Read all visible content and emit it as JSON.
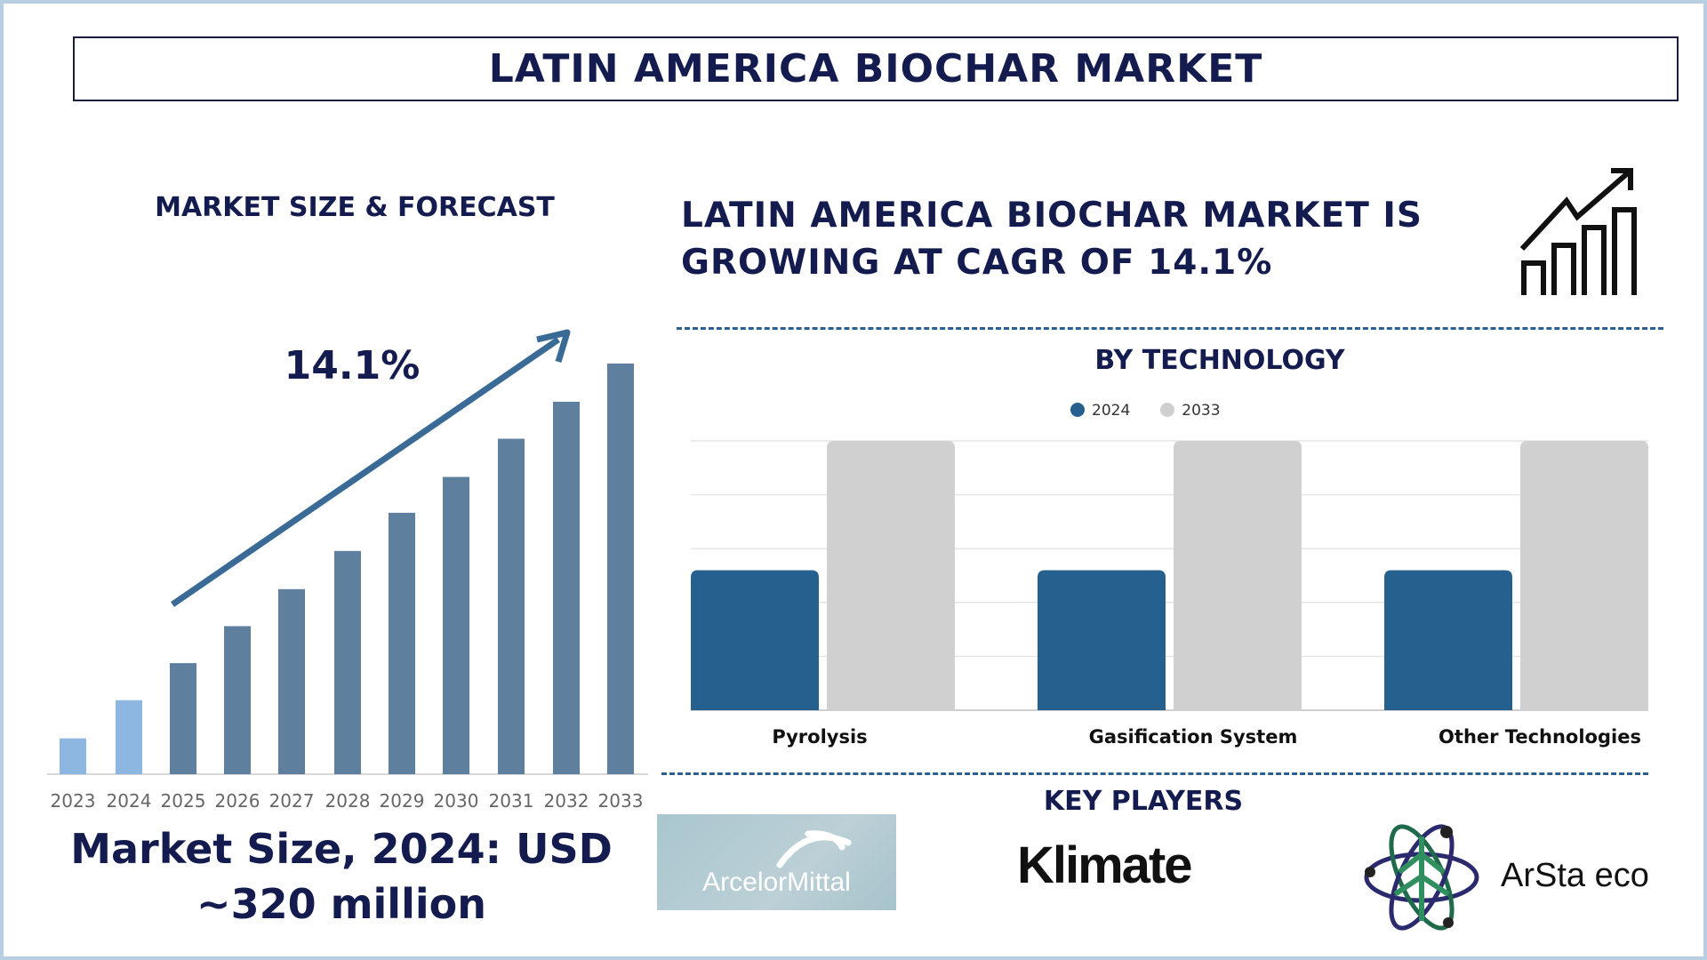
{
  "title": "LATIN AMERICA BIOCHAR MARKET",
  "left": {
    "heading": "MARKET SIZE & FORECAST",
    "cagr_label": "14.1%",
    "market_size_line1": "Market Size, 2024: USD",
    "market_size_line2": "~320 million"
  },
  "right": {
    "headline_line1": "LATIN AMERICA BIOCHAR MARKET IS",
    "headline_line2": "GROWING AT CAGR OF 14.1%",
    "tech_heading": "BY TECHNOLOGY",
    "key_players_heading": "KEY PLAYERS",
    "key_players": [
      "ArcelorMittal",
      "Klimate",
      "ArSta eco"
    ]
  },
  "colors": {
    "navy": "#141c4f",
    "bar_history": "#8db6e0",
    "bar_forecast": "#5f7f9f",
    "arrow": "#3a6b96",
    "tech_2024": "#25608f",
    "tech_2033": "#d0d0d0"
  },
  "chart_data": [
    {
      "type": "bar",
      "title": "MARKET SIZE & FORECAST",
      "categories": [
        "2023",
        "2024",
        "2025",
        "2026",
        "2027",
        "2028",
        "2029",
        "2030",
        "2031",
        "2032",
        "2033"
      ],
      "values": [
        155,
        320,
        480,
        640,
        800,
        965,
        1130,
        1285,
        1450,
        1610,
        1775
      ],
      "ylim": [
        0,
        1775
      ],
      "annotation": "14.1%"
    },
    {
      "type": "bar",
      "title": "BY TECHNOLOGY",
      "categories": [
        "Pyrolysis",
        "Gasification System",
        "Other Technologies"
      ],
      "series": [
        {
          "name": "2024",
          "values": [
            2.6,
            2.6,
            2.6
          ]
        },
        {
          "name": "2033",
          "values": [
            5,
            5,
            5
          ]
        }
      ],
      "ylim": [
        0,
        5
      ],
      "grid": true,
      "legend": "top-center"
    }
  ]
}
